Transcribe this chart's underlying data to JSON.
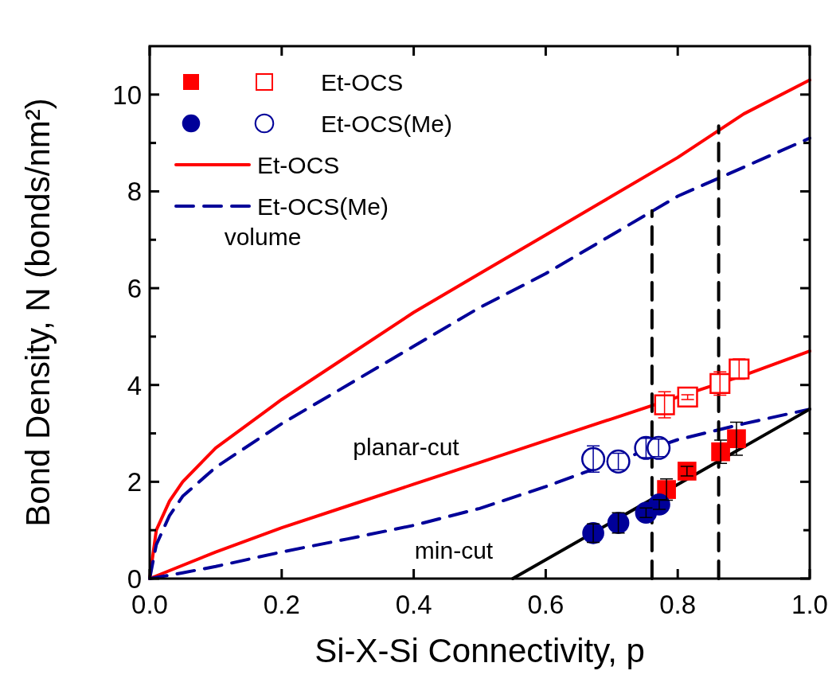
{
  "chart_data": {
    "type": "scatter",
    "xlabel": "Si-X-Si Connectivity, p",
    "ylabel": "Bond Density, N (bonds/nm²)",
    "xlim": [
      0,
      1
    ],
    "ylim": [
      0,
      11
    ],
    "xticks": [
      {
        "value": 0,
        "label": "0.0"
      },
      {
        "value": 0.2,
        "label": "0.2"
      },
      {
        "value": 0.4,
        "label": "0.4"
      },
      {
        "value": 0.6,
        "label": "0.6"
      },
      {
        "value": 0.8,
        "label": "0.8"
      },
      {
        "value": 1,
        "label": "1.0"
      }
    ],
    "yticks": [
      0,
      {
        "value": 1,
        "label": null
      },
      2,
      {
        "value": 3,
        "label": null
      },
      4,
      {
        "value": 5,
        "label": null
      },
      6,
      {
        "value": 7,
        "label": null
      },
      8,
      {
        "value": 9,
        "label": null
      },
      10
    ],
    "grid": false,
    "legend": "top left",
    "series": [
      {
        "marker": "square",
        "color": "#ff0000",
        "x": [
          0.783,
          0.814,
          0.865,
          0.889
        ],
        "values": [
          1.84,
          2.22,
          2.62,
          2.89
        ],
        "errors": [
          0.22,
          0.1,
          0.24,
          0.34
        ]
      },
      {
        "name": "Et-OCS",
        "marker": "square",
        "color": "#ff0000",
        "x": [
          0.78,
          0.815,
          0.864,
          0.893
        ],
        "values": [
          3.59,
          3.75,
          4.03,
          4.33
        ],
        "errors": [
          0.27,
          0.05,
          0.24,
          0.21
        ]
      },
      {
        "marker": "circle",
        "color": "#000099",
        "x": [
          0.672,
          0.71,
          0.752,
          0.772
        ],
        "values": [
          0.94,
          1.15,
          1.36,
          1.53
        ],
        "errors": [
          0.19,
          0.21,
          0.1,
          0.1
        ]
      },
      {
        "name": "Et-OCS(Me)",
        "marker": "circle",
        "color": "#000099",
        "x": [
          0.672,
          0.71,
          0.752,
          0.771
        ],
        "values": [
          2.47,
          2.42,
          2.7,
          2.7
        ],
        "errors": [
          0.27,
          0.17,
          0.2,
          0.18
        ]
      },
      {
        "name": "Et-OCS",
        "type": "line",
        "line_style": "solid",
        "color": "#ff0000",
        "x": [
          0,
          0.01,
          0.03,
          0.05,
          0.1,
          0.2,
          0.3,
          0.4,
          0.5,
          0.6,
          0.7,
          0.8,
          0.9,
          1
        ],
        "values": [
          0,
          1,
          1.6,
          2,
          2.7,
          3.7,
          4.6,
          5.5,
          6.3,
          7.1,
          7.9,
          8.7,
          9.6,
          10.3
        ]
      },
      {
        "name": "Et-OCS(Me)",
        "type": "line",
        "line_style": "dashed",
        "color": "#000099",
        "x": [
          0,
          0.01,
          0.03,
          0.05,
          0.1,
          0.2,
          0.3,
          0.4,
          0.5,
          0.6,
          0.7,
          0.8,
          0.9,
          1
        ],
        "values": [
          0,
          0.7,
          1.3,
          1.7,
          2.3,
          3.2,
          4,
          4.8,
          5.6,
          6.3,
          7.1,
          7.9,
          8.5,
          9.1
        ]
      },
      {
        "type": "line",
        "line_style": "solid",
        "color": "#ff0000",
        "x": [
          0,
          0.1,
          0.2,
          0.3,
          0.4,
          0.5,
          0.6,
          0.7,
          0.8,
          0.9,
          1
        ],
        "values": [
          0,
          0.55,
          1.05,
          1.5,
          1.95,
          2.4,
          2.85,
          3.3,
          3.75,
          4.2,
          4.7
        ]
      },
      {
        "type": "line",
        "line_style": "dashed",
        "color": "#000099",
        "x": [
          0,
          0.05,
          0.1,
          0.2,
          0.3,
          0.4,
          0.5,
          0.6,
          0.7,
          0.8,
          0.9,
          1
        ],
        "values": [
          0,
          0.12,
          0.25,
          0.55,
          0.82,
          1.1,
          1.45,
          1.9,
          2.4,
          2.87,
          3.2,
          3.5
        ]
      },
      {
        "type": "line",
        "line_style": "solid",
        "color": "#000000",
        "x": [
          0.55,
          1
        ],
        "values": [
          0,
          3.5
        ]
      },
      {
        "type": "line",
        "line_style": "dashed",
        "color": "#000000",
        "x": [
          0.761,
          0.761
        ],
        "values": [
          0,
          7.6
        ]
      },
      {
        "type": "line",
        "line_style": "dashed",
        "color": "#000000",
        "x": [
          0.862,
          0.862
        ],
        "values": [
          0,
          9.35
        ]
      }
    ],
    "annotations": [
      "volume",
      "planar-cut",
      "min-cut"
    ]
  }
}
